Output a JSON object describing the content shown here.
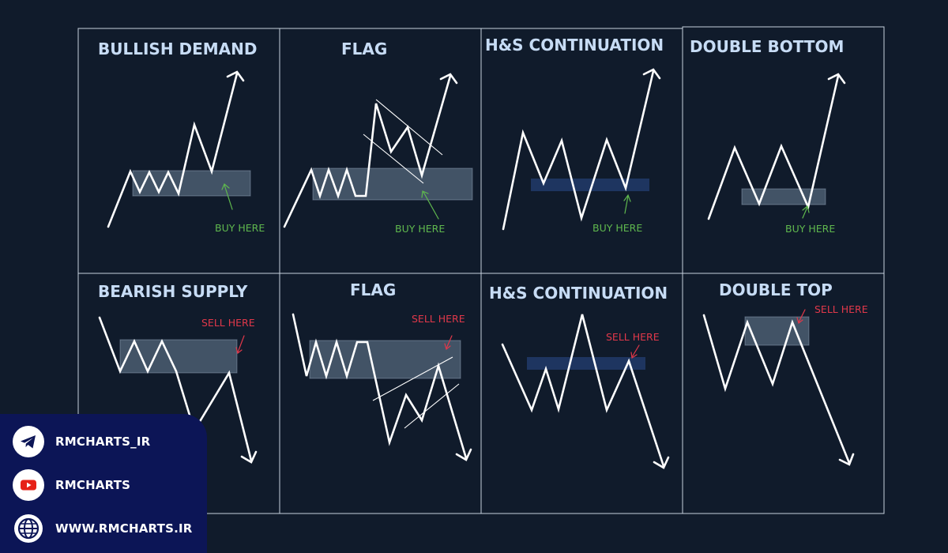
{
  "panels": [
    {
      "title": "BULLISH DEMAND",
      "label": "BUY HERE",
      "kind": "buy"
    },
    {
      "title": "FLAG",
      "label": "BUY HERE",
      "kind": "buy"
    },
    {
      "title": "H&S CONTINUATION",
      "label": "BUY HERE",
      "kind": "buy"
    },
    {
      "title": "DOUBLE BOTTOM",
      "label": "BUY HERE",
      "kind": "buy"
    },
    {
      "title": "BEARISH SUPPLY",
      "label": "SELL HERE",
      "kind": "sell"
    },
    {
      "title": "FLAG",
      "label": "SELL HERE",
      "kind": "sell"
    },
    {
      "title": "H&S CONTINUATION",
      "label": "SELL HERE",
      "kind": "sell"
    },
    {
      "title": "DOUBLE TOP",
      "label": "SELL HERE",
      "kind": "sell"
    }
  ],
  "social": [
    {
      "icon": "telegram-icon",
      "text": "RMCHARTS_IR"
    },
    {
      "icon": "youtube-icon",
      "text": "RMCHARTS"
    },
    {
      "icon": "globe-icon",
      "text": "WWW.RMCHARTS.IR"
    }
  ],
  "colors": {
    "background": "#101b2b",
    "title": "#c7dcf5",
    "buy": "#5fb84e",
    "sell": "#e0384a",
    "zone_grey": "#96afc8",
    "zone_blue": "#1e3560",
    "social_panel": "#0c1556"
  }
}
